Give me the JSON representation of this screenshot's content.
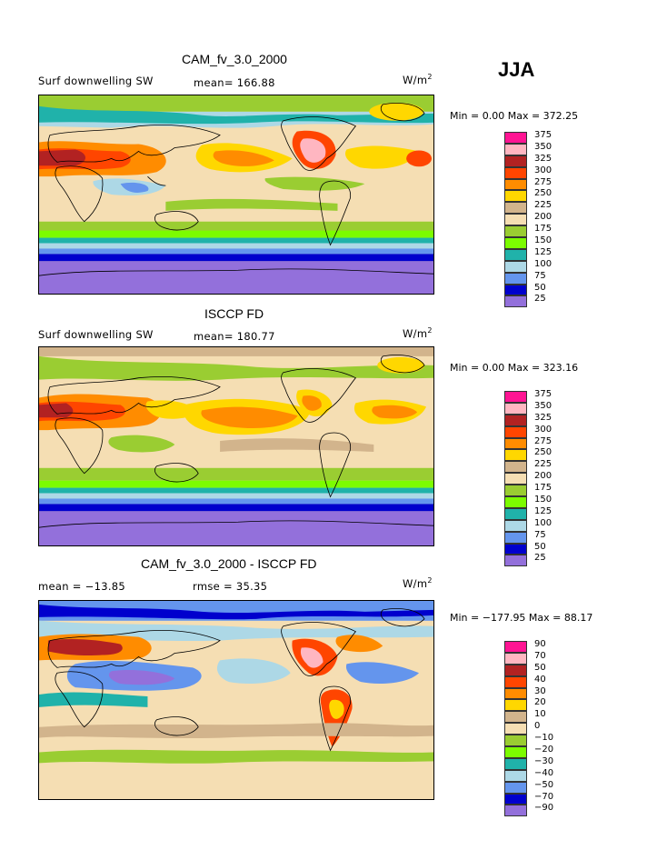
{
  "season": "JJA",
  "panels": [
    {
      "title": "CAM_fv_3.0_2000",
      "left_label": "Surf downwelling SW",
      "center_label": "mean= 166.88",
      "units": "W/m",
      "units_exp": "2",
      "minmax": "Min =    0.00 Max = 372.25"
    },
    {
      "title": "ISCCP FD",
      "left_label": "Surf downwelling SW",
      "center_label": "mean= 180.77",
      "units": "W/m",
      "units_exp": "2",
      "minmax": "Min =    0.00 Max = 323.16"
    },
    {
      "title": "CAM_fv_3.0_2000 - ISCCP FD",
      "left_label": "mean = −13.85",
      "center_label": "rmse =  35.35",
      "units": "W/m",
      "units_exp": "2",
      "minmax": "Min = −177.95 Max =  88.17"
    }
  ],
  "colorbar_abs": {
    "labels": [
      "375",
      "350",
      "325",
      "300",
      "275",
      "250",
      "225",
      "200",
      "175",
      "150",
      "125",
      "100",
      "75",
      "50",
      "25"
    ],
    "colors": [
      "#ff1493",
      "#ffb6c1",
      "#b22222",
      "#ff4500",
      "#ff8c00",
      "#ffd700",
      "#d2b48c",
      "#f5deb3",
      "#9acd32",
      "#7cfc00",
      "#20b2aa",
      "#add8e6",
      "#6495ed",
      "#0000cd",
      "#9370db"
    ]
  },
  "colorbar_diff": {
    "labels": [
      "90",
      "70",
      "50",
      "40",
      "30",
      "20",
      "10",
      "0",
      "−10",
      "−20",
      "−30",
      "−40",
      "−50",
      "−70",
      "−90"
    ],
    "colors": [
      "#ff1493",
      "#ffb6c1",
      "#b22222",
      "#ff4500",
      "#ff8c00",
      "#ffd700",
      "#d2b48c",
      "#f5deb3",
      "#9acd32",
      "#7cfc00",
      "#20b2aa",
      "#add8e6",
      "#6495ed",
      "#0000cd",
      "#9370db"
    ]
  }
}
